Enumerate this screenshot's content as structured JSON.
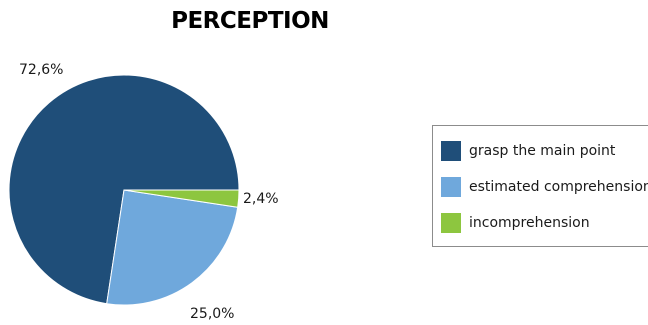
{
  "chart_data": {
    "type": "pie",
    "title": "PERCEPTION",
    "categories": [
      "grasp the main point",
      "estimated comprehension",
      "incomprehension"
    ],
    "values": [
      72.6,
      25.0,
      2.4
    ],
    "value_labels": [
      "72,6%",
      "25,0%",
      "2,4%"
    ],
    "colors": [
      "#1f4e79",
      "#6fa8dc",
      "#8dc63f"
    ],
    "legend_position": "right"
  }
}
